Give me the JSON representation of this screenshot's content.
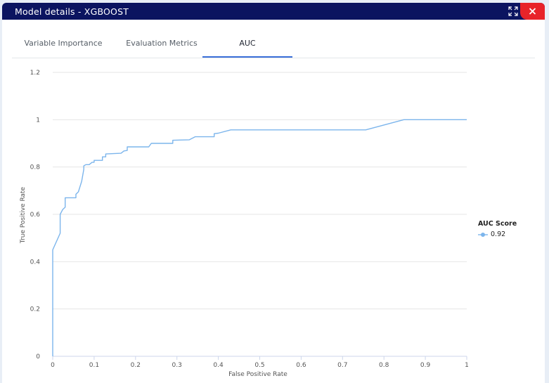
{
  "window": {
    "title": "Model details - XGBOOST"
  },
  "tabs": [
    {
      "label": "Variable Importance",
      "active": false
    },
    {
      "label": "Evaluation Metrics",
      "active": false
    },
    {
      "label": "AUC",
      "active": true
    }
  ],
  "colors": {
    "series": "#7cb5ec",
    "titlebar": "#0b1460",
    "close": "#e8242a",
    "active_tab": "#3a6fd8"
  },
  "icons": {
    "expand": "expand-icon",
    "close": "close-icon"
  },
  "chart_data": {
    "type": "line",
    "title": "",
    "xlabel": "False Positive Rate",
    "ylabel": "True Positive Rate",
    "xlim": [
      0,
      1
    ],
    "ylim": [
      0,
      1.2
    ],
    "x_ticks": [
      "0",
      "0.1",
      "0.2",
      "0.3",
      "0.4",
      "0.5",
      "0.6",
      "0.7",
      "0.8",
      "0.9",
      "1"
    ],
    "y_ticks": [
      "0",
      "0.2",
      "0.4",
      "0.6",
      "0.8",
      "1",
      "1.2"
    ],
    "grid": true,
    "legend": {
      "title": "AUC Score",
      "placement": "right"
    },
    "series": [
      {
        "name": "0.92",
        "x": [
          0,
          0,
          0.018,
          0.018,
          0.024,
          0.03,
          0.03,
          0.056,
          0.056,
          0.062,
          0.07,
          0.075,
          0.075,
          0.08,
          0.088,
          0.095,
          0.1,
          0.1,
          0.12,
          0.12,
          0.128,
          0.128,
          0.165,
          0.172,
          0.18,
          0.18,
          0.22,
          0.232,
          0.238,
          0.29,
          0.29,
          0.33,
          0.344,
          0.39,
          0.39,
          0.4,
          0.43,
          0.45,
          0.756,
          0.848,
          1
        ],
        "y": [
          0,
          0.45,
          0.52,
          0.6,
          0.62,
          0.63,
          0.67,
          0.67,
          0.685,
          0.695,
          0.74,
          0.79,
          0.805,
          0.81,
          0.81,
          0.82,
          0.82,
          0.828,
          0.828,
          0.843,
          0.843,
          0.855,
          0.858,
          0.868,
          0.87,
          0.885,
          0.885,
          0.885,
          0.9,
          0.9,
          0.913,
          0.915,
          0.928,
          0.928,
          0.941,
          0.943,
          0.957,
          0.957,
          0.957,
          1,
          1
        ]
      }
    ]
  }
}
